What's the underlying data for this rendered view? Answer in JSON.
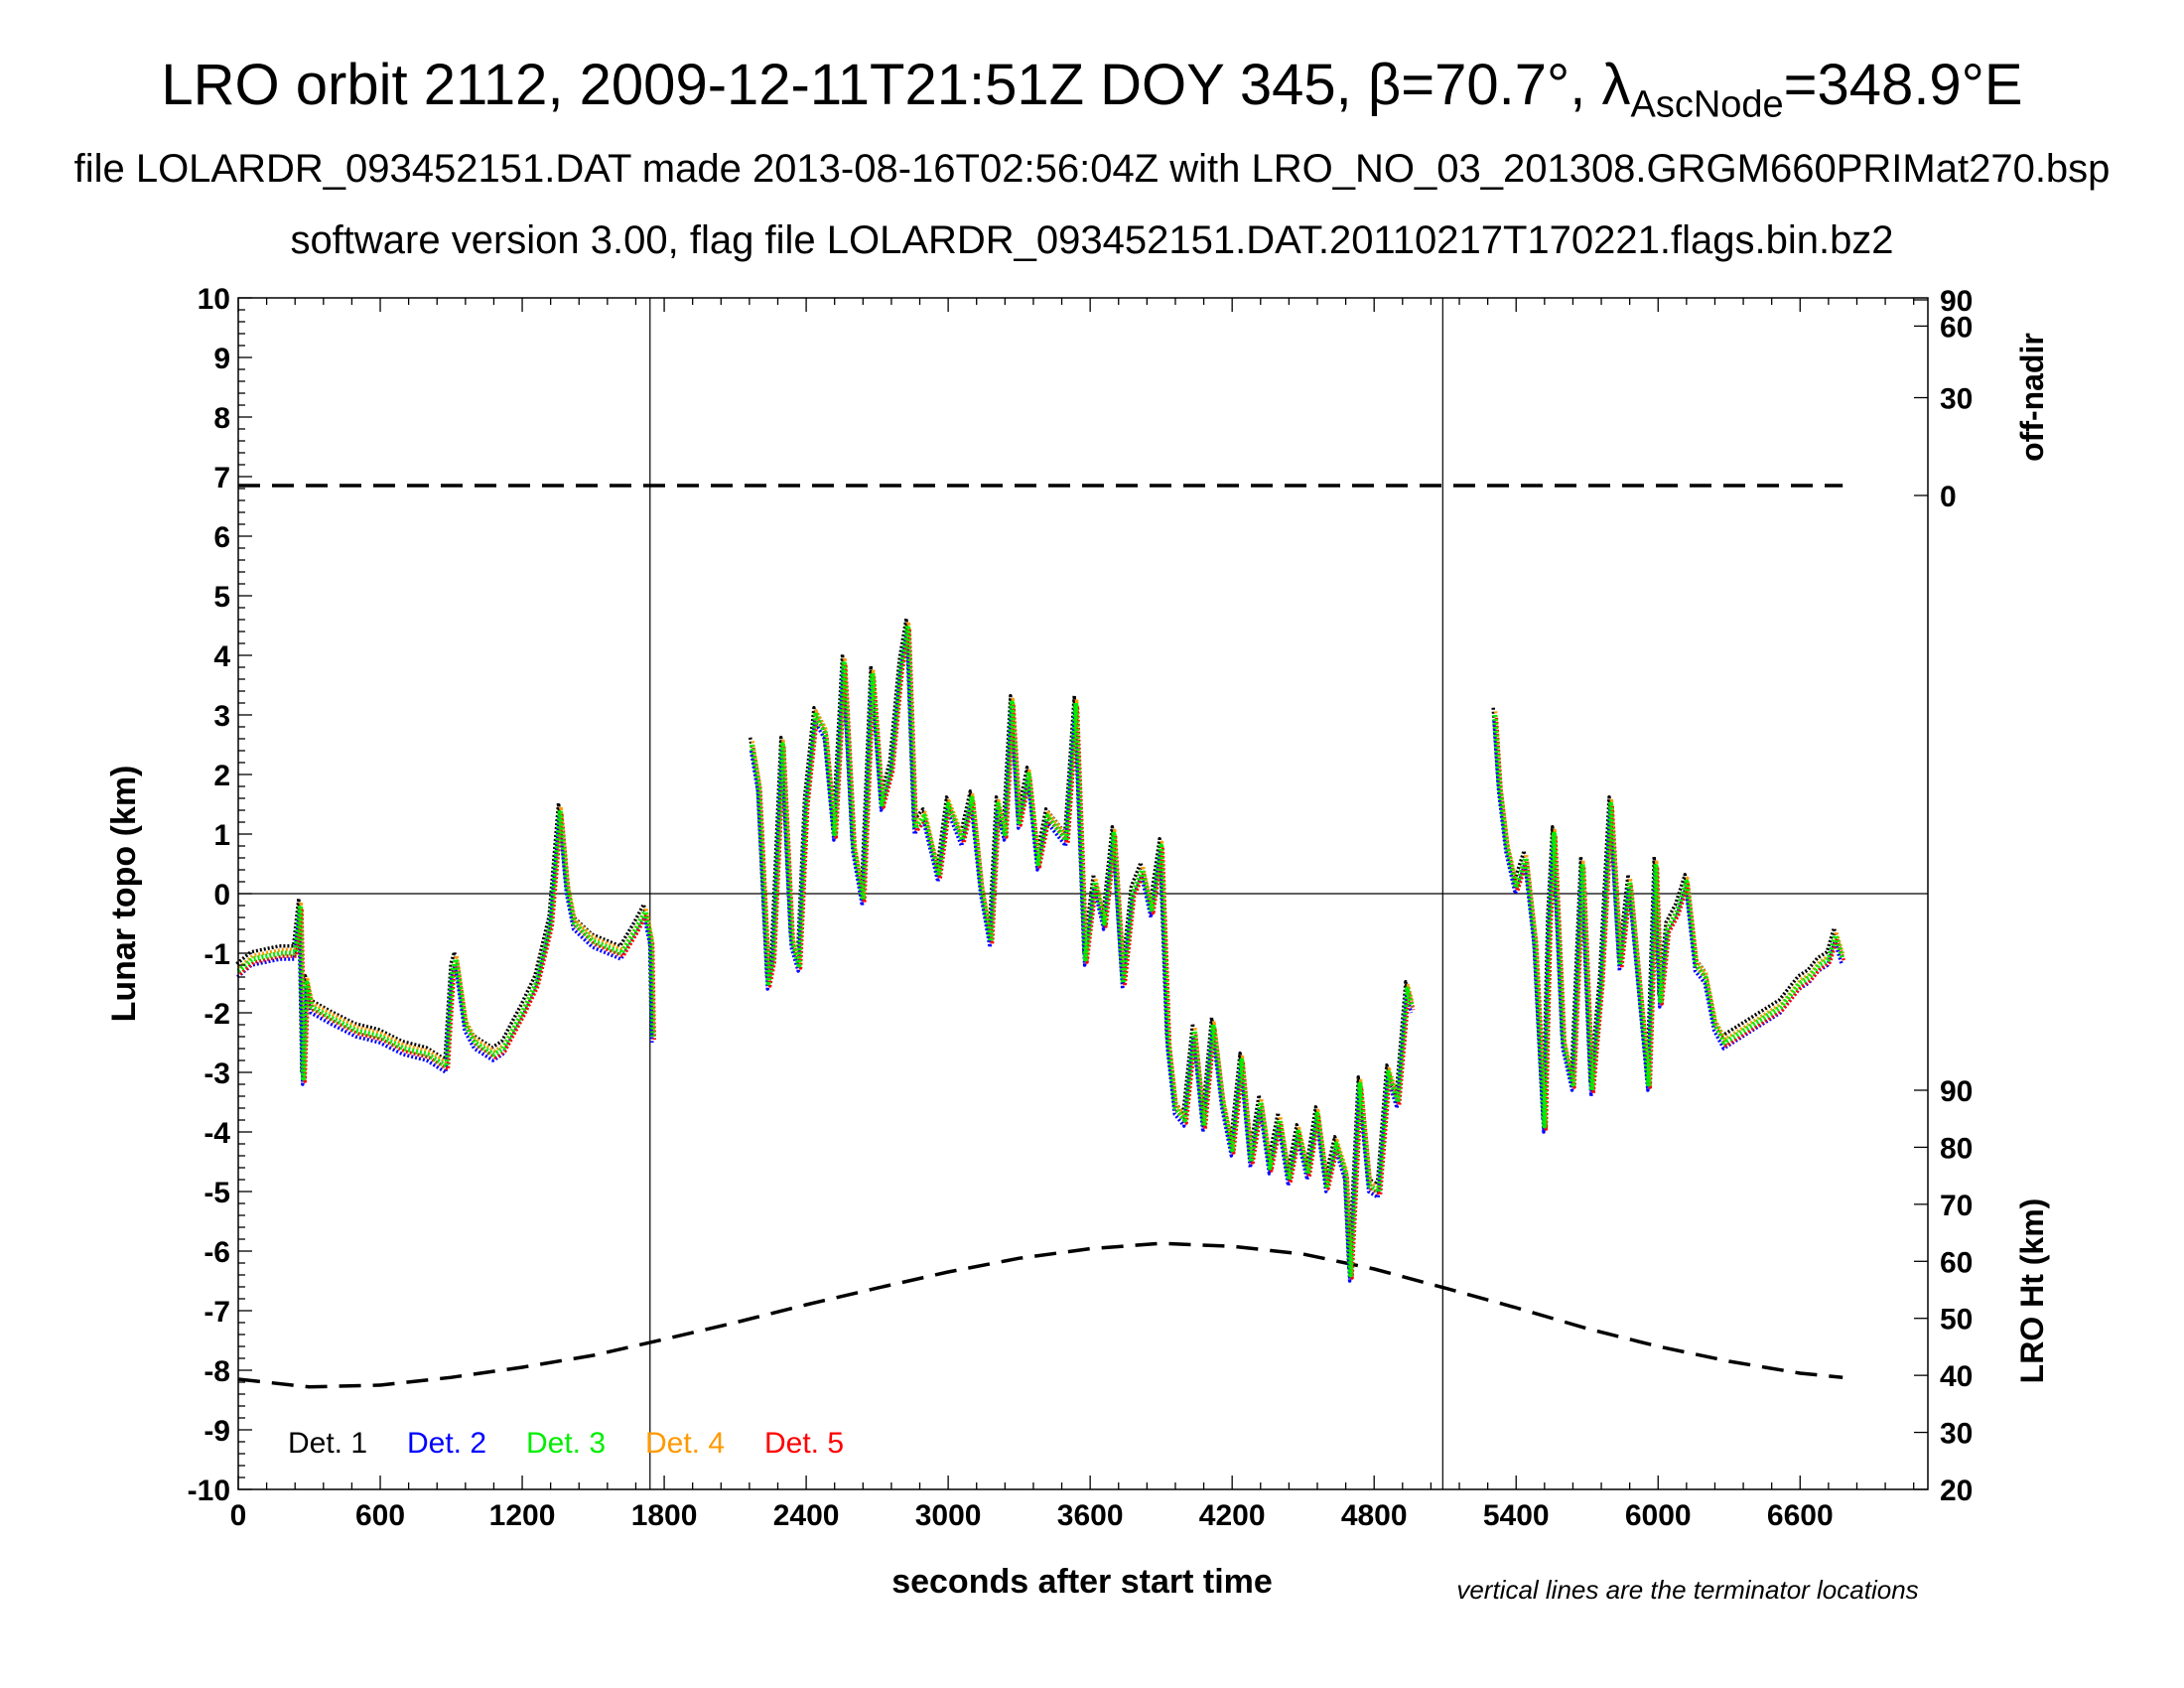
{
  "titles": {
    "line1_main": "LRO orbit 2112, 2009-12-11T21:51Z DOY 345, β=70.7°, λ",
    "line1_sub": "AscNode",
    "line1_end": "=348.9°E",
    "line2": "file LOLARDR_093452151.DAT made 2013-08-16T02:56:04Z with LRO_NO_03_201308.GRGM660PRIMat270.bsp",
    "line3": "software version 3.00, flag file LOLARDR_093452151.DAT.20110217T170221.flags.bin.bz2"
  },
  "chart_data": {
    "type": "scatter",
    "xlabel": "seconds after start time",
    "ylabel": "Lunar topo (km)",
    "xlim": [
      0,
      7140
    ],
    "ylim": [
      -10,
      10
    ],
    "x_ticks": [
      0,
      600,
      1200,
      1800,
      2400,
      3000,
      3600,
      4200,
      4800,
      5400,
      6000,
      6600
    ],
    "y_ticks": [
      -10,
      -9,
      -8,
      -7,
      -6,
      -5,
      -4,
      -3,
      -2,
      -1,
      0,
      1,
      2,
      3,
      4,
      5,
      6,
      7,
      8,
      9,
      10
    ],
    "right_axis_top": {
      "label": "off-nadir",
      "ticks": [
        0,
        30,
        60,
        90
      ]
    },
    "right_axis_bottom": {
      "label": "LRO Ht (km)",
      "ticks": [
        20,
        30,
        40,
        50,
        60,
        70,
        80,
        90
      ]
    },
    "terminator_lines_x": [
      1740,
      5090
    ],
    "note": "vertical lines are the terminator locations",
    "legend": [
      {
        "label": "Det. 1",
        "color": "#000000"
      },
      {
        "label": "Det. 2",
        "color": "#0000ff"
      },
      {
        "label": "Det. 3",
        "color": "#00ee00"
      },
      {
        "label": "Det. 4",
        "color": "#ff9900"
      },
      {
        "label": "Det. 5",
        "color": "#ff0000"
      }
    ],
    "off_nadir_series": {
      "name": "off-nadir",
      "x": [
        0,
        6780
      ],
      "y": [
        6.85,
        6.85
      ]
    },
    "altitude_series": {
      "name": "LRO Ht",
      "x": [
        0,
        300,
        600,
        900,
        1200,
        1500,
        1800,
        2100,
        2400,
        2700,
        3000,
        3300,
        3600,
        3900,
        4200,
        4500,
        4800,
        5100,
        5400,
        5700,
        6000,
        6300,
        6600,
        6780
      ],
      "y": [
        -8.15,
        -8.28,
        -8.25,
        -8.12,
        -7.95,
        -7.75,
        -7.48,
        -7.2,
        -6.9,
        -6.62,
        -6.35,
        -6.12,
        -5.96,
        -5.87,
        -5.92,
        -6.05,
        -6.3,
        -6.62,
        -6.95,
        -7.3,
        -7.6,
        -7.85,
        -8.05,
        -8.12
      ]
    },
    "topo_segments": [
      {
        "x": [
          0,
          60,
          120,
          180,
          240,
          262,
          275,
          290,
          310,
          400,
          500,
          600,
          700,
          800,
          880,
          905,
          920,
          960,
          1000,
          1080,
          1120,
          1160,
          1200,
          1260,
          1320,
          1360,
          1390,
          1420,
          1500,
          1560,
          1620,
          1680,
          1720,
          1745,
          1752
        ],
        "y": [
          -1.3,
          -1.1,
          -1.05,
          -1.0,
          -1.0,
          -0.2,
          -3.1,
          -1.5,
          -1.9,
          -2.1,
          -2.3,
          -2.4,
          -2.6,
          -2.7,
          -2.9,
          -1.3,
          -1.1,
          -2.2,
          -2.5,
          -2.7,
          -2.6,
          -2.3,
          -2.0,
          -1.5,
          -0.5,
          1.4,
          0.1,
          -0.5,
          -0.8,
          -0.9,
          -1.0,
          -0.6,
          -0.3,
          -0.8,
          -2.4
        ]
      },
      {
        "x": [
          2170,
          2200,
          2240,
          2260,
          2300,
          2340,
          2370,
          2400,
          2440,
          2480,
          2520,
          2560,
          2600,
          2640,
          2680,
          2720,
          2760,
          2800,
          2830,
          2860,
          2900,
          2960,
          3000,
          3060,
          3100,
          3140,
          3180,
          3210,
          3240,
          3270,
          3300,
          3340,
          3380,
          3420,
          3460,
          3500,
          3540,
          3580,
          3620,
          3660,
          3700,
          3740,
          3780,
          3820,
          3860,
          3900,
          3930,
          3960,
          4000,
          4040,
          4080,
          4120,
          4160,
          4200,
          4240,
          4280,
          4320,
          4360,
          4400,
          4440,
          4480,
          4520,
          4560,
          4600,
          4640,
          4680,
          4700,
          4740,
          4780,
          4820,
          4860,
          4900,
          4940,
          4960
        ],
        "y": [
          2.5,
          1.8,
          -1.5,
          -1.1,
          2.5,
          -0.8,
          -1.2,
          1.5,
          3.0,
          2.7,
          1.0,
          3.9,
          0.8,
          -0.1,
          3.7,
          1.5,
          2.1,
          3.8,
          4.5,
          1.1,
          1.3,
          0.3,
          1.5,
          0.9,
          1.6,
          0.1,
          -0.8,
          1.5,
          1.0,
          3.2,
          1.2,
          2.0,
          0.5,
          1.3,
          1.1,
          0.9,
          3.2,
          -1.1,
          0.2,
          -0.5,
          1.0,
          -1.5,
          0.0,
          0.4,
          -0.3,
          0.8,
          -2.5,
          -3.6,
          -3.8,
          -2.3,
          -3.9,
          -2.2,
          -3.5,
          -4.3,
          -2.8,
          -4.5,
          -3.5,
          -4.6,
          -3.8,
          -4.8,
          -4.0,
          -4.7,
          -3.7,
          -4.9,
          -4.2,
          -4.7,
          -6.4,
          -3.2,
          -4.9,
          -5.0,
          -3.0,
          -3.5,
          -1.6,
          -1.9
        ]
      },
      {
        "x": [
          5310,
          5330,
          5360,
          5400,
          5440,
          5480,
          5520,
          5540,
          5560,
          5600,
          5640,
          5680,
          5720,
          5760,
          5800,
          5840,
          5880,
          5920,
          5960,
          5990,
          6010,
          6040,
          6080,
          6120,
          6160,
          6200,
          6240,
          6280,
          6320,
          6360,
          6400,
          6440,
          6480,
          6520,
          6560,
          6600,
          6640,
          6680,
          6720,
          6750,
          6780
        ],
        "y": [
          3.0,
          1.8,
          0.8,
          0.1,
          0.6,
          -0.8,
          -3.9,
          -0.5,
          1.0,
          -2.5,
          -3.2,
          0.5,
          -3.3,
          -1.5,
          1.5,
          -1.2,
          0.2,
          -1.5,
          -3.2,
          0.5,
          -1.8,
          -0.6,
          -0.3,
          0.2,
          -1.2,
          -1.4,
          -2.2,
          -2.5,
          -2.4,
          -2.3,
          -2.2,
          -2.1,
          -2.0,
          -1.9,
          -1.7,
          -1.5,
          -1.4,
          -1.2,
          -1.1,
          -0.7,
          -1.1
        ]
      }
    ]
  }
}
